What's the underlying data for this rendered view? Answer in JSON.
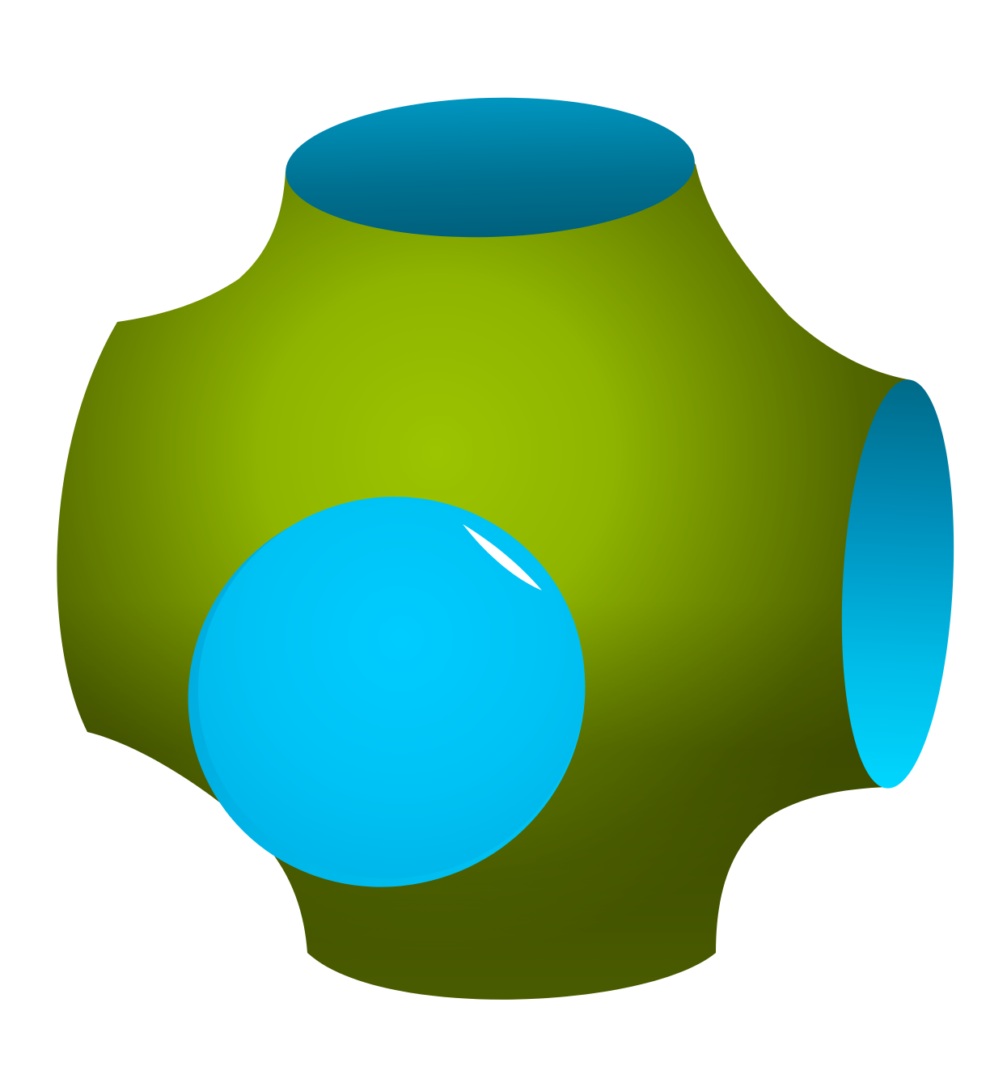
{
  "scene": {
    "subject": "schwarz-p-surface",
    "colors": {
      "background": "#ffffff",
      "surface_light": "#98c000",
      "surface_mid": "#7a9a00",
      "surface_dark": "#4d6000",
      "opening_light": "#00d4ff",
      "opening_mid": "#00a8d8",
      "opening_dark": "#006880"
    }
  }
}
